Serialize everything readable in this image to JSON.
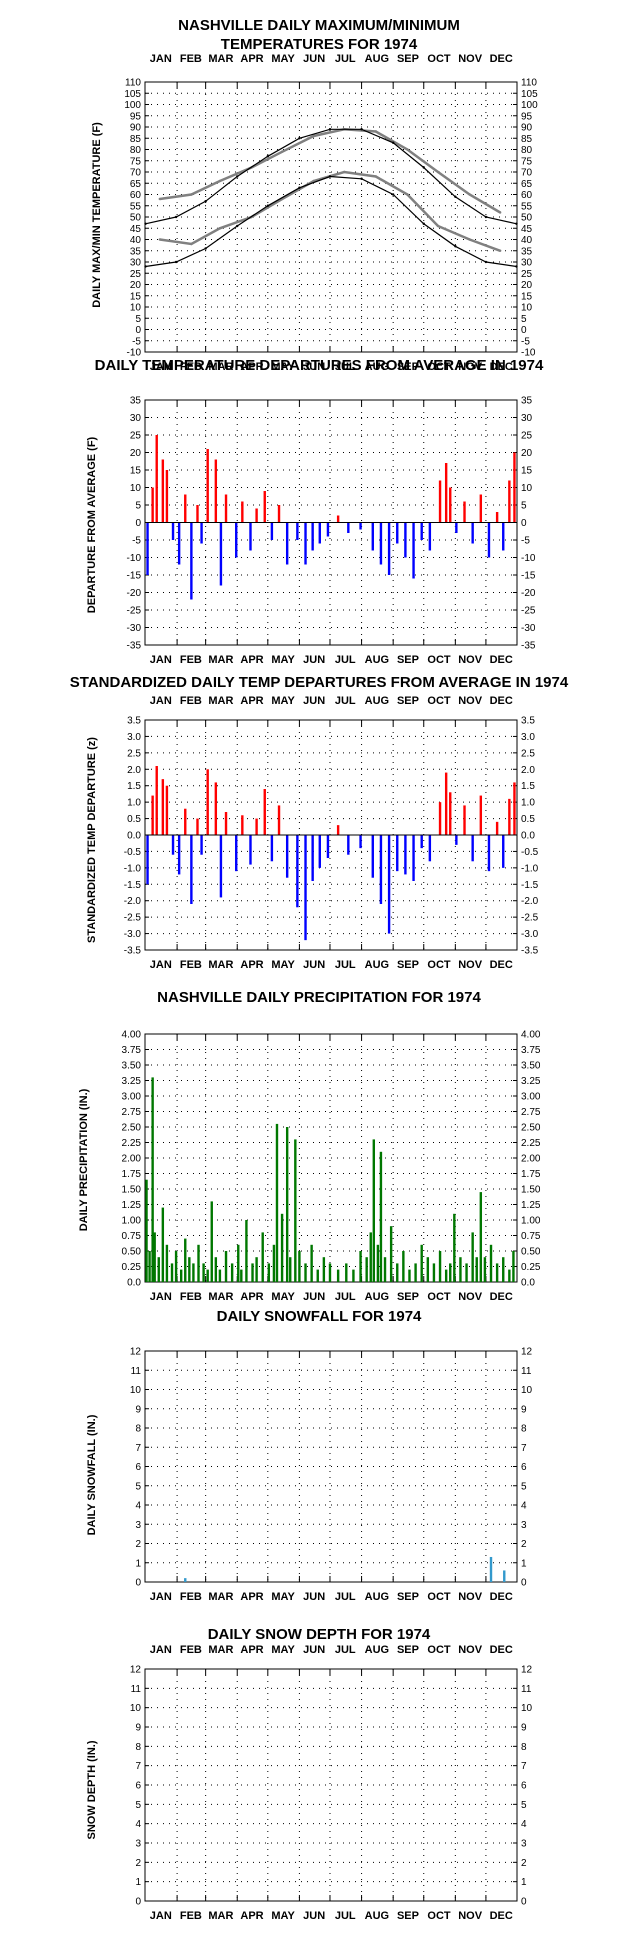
{
  "chart_data": [
    {
      "id": "temp",
      "type": "line",
      "title": [
        "NASHVILLE DAILY MAXIMUM/MINIMUM",
        "TEMPERATURES FOR 1974"
      ],
      "ylabel": "DAILY MAX/MIN TEMPERATURE (F)",
      "months": [
        "JAN",
        "FEB",
        "MAR",
        "APR",
        "MAY",
        "JUN",
        "JUL",
        "AUG",
        "SEP",
        "OCT",
        "NOV",
        "DEC"
      ],
      "ylim": [
        -10,
        110
      ],
      "yticks": [
        "110",
        "105",
        "100",
        "95",
        "90",
        "85",
        "80",
        "75",
        "70",
        "65",
        "60",
        "55",
        "50",
        "45",
        "40",
        "35",
        "30",
        "25",
        "20",
        "15",
        "10",
        "5",
        "0",
        "-5",
        "-10"
      ],
      "grid": true,
      "series": [
        {
          "role": "daily max (monthly approx.)",
          "color": "#808080",
          "x": [
            15,
            46,
            74,
            105,
            135,
            166,
            196,
            227,
            258,
            288,
            319,
            349
          ],
          "y": [
            58,
            60,
            66,
            72,
            79,
            86,
            89,
            88,
            80,
            70,
            60,
            52
          ]
        },
        {
          "role": "daily min (monthly approx.)",
          "color": "#808080",
          "x": [
            15,
            46,
            74,
            105,
            135,
            166,
            196,
            227,
            258,
            288,
            319,
            349
          ],
          "y": [
            40,
            38,
            45,
            50,
            58,
            66,
            70,
            68,
            60,
            46,
            40,
            35
          ]
        },
        {
          "role": "normal max",
          "color": "#000000",
          "x": [
            1,
            31,
            60,
            91,
            121,
            152,
            182,
            213,
            244,
            274,
            305,
            335,
            365
          ],
          "y": [
            47,
            50,
            57,
            68,
            77,
            85,
            89,
            89,
            83,
            72,
            59,
            50,
            47
          ]
        },
        {
          "role": "normal min",
          "color": "#000000",
          "x": [
            1,
            31,
            60,
            91,
            121,
            152,
            182,
            213,
            244,
            274,
            305,
            335,
            365
          ],
          "y": [
            28,
            30,
            36,
            46,
            55,
            63,
            68,
            67,
            60,
            47,
            37,
            30,
            28
          ]
        }
      ]
    },
    {
      "id": "dep",
      "type": "bar",
      "title": [
        "DAILY TEMPERATURE DEPARTURES FROM AVERAGE IN 1974"
      ],
      "ylabel": "DEPARTURE FROM AVERAGE (F)",
      "months": [
        "JAN",
        "FEB",
        "MAR",
        "APR",
        "MAY",
        "JUN",
        "JUL",
        "AUG",
        "SEP",
        "OCT",
        "NOV",
        "DEC"
      ],
      "ylim": [
        -35,
        35
      ],
      "yticks": [
        "35",
        "30",
        "25",
        "20",
        "15",
        "10",
        "5",
        "0",
        "-5",
        "-10",
        "-15",
        "-20",
        "-25",
        "-30",
        "-35"
      ],
      "grid": true,
      "pos_color": "#ff0000",
      "neg_color": "#0000ff",
      "series": [
        {
          "role": "departure peaks (approx.)",
          "x": [
            3,
            8,
            12,
            18,
            22,
            28,
            34,
            40,
            46,
            52,
            56,
            62,
            70,
            75,
            80,
            90,
            96,
            104,
            110,
            118,
            125,
            132,
            140,
            150,
            158,
            165,
            172,
            180,
            190,
            200,
            212,
            224,
            232,
            240,
            248,
            256,
            264,
            272,
            280,
            290,
            296,
            300,
            306,
            314,
            322,
            330,
            338,
            346,
            352,
            358,
            363
          ],
          "y": [
            -15,
            10,
            25,
            18,
            15,
            -5,
            -12,
            8,
            -22,
            5,
            -6,
            21,
            18,
            -18,
            8,
            -10,
            6,
            -8,
            4,
            9,
            -5,
            5,
            -12,
            -5,
            -12,
            -8,
            -6,
            -4,
            2,
            -3,
            -2,
            -8,
            -12,
            -15,
            -6,
            -10,
            -16,
            -5,
            -8,
            12,
            17,
            10,
            -3,
            6,
            -6,
            8,
            -10,
            3,
            -8,
            12,
            20
          ]
        }
      ]
    },
    {
      "id": "std",
      "type": "bar",
      "title": [
        "STANDARDIZED DAILY TEMP DEPARTURES FROM AVERAGE IN 1974"
      ],
      "ylabel": "STANDARDIZED TEMP DEPARTURE (z)",
      "months": [
        "JAN",
        "FEB",
        "MAR",
        "APR",
        "MAY",
        "JUN",
        "JUL",
        "AUG",
        "SEP",
        "OCT",
        "NOV",
        "DEC"
      ],
      "ylim": [
        -3.5,
        3.5
      ],
      "yticks": [
        "3.5",
        "3.0",
        "2.5",
        "2.0",
        "1.5",
        "1.0",
        "0.5",
        "0.0",
        "-0.5",
        "-1.0",
        "-1.5",
        "-2.0",
        "-2.5",
        "-3.0",
        "-3.5"
      ],
      "grid": true,
      "pos_color": "#ff0000",
      "neg_color": "#0000ff",
      "series": [
        {
          "role": "standardized departure peaks (approx.)",
          "x": [
            3,
            8,
            12,
            18,
            22,
            28,
            34,
            40,
            46,
            52,
            56,
            62,
            70,
            75,
            80,
            90,
            96,
            104,
            110,
            118,
            125,
            132,
            140,
            150,
            158,
            165,
            172,
            180,
            190,
            200,
            212,
            224,
            232,
            240,
            248,
            256,
            264,
            272,
            280,
            290,
            296,
            300,
            306,
            314,
            322,
            330,
            338,
            346,
            352,
            358,
            363
          ],
          "y": [
            -1.5,
            1.2,
            2.1,
            1.7,
            1.5,
            -0.6,
            -1.2,
            0.8,
            -2.1,
            0.5,
            -0.6,
            2.0,
            1.6,
            -1.9,
            0.7,
            -1.1,
            0.6,
            -0.9,
            0.5,
            1.4,
            -0.8,
            0.9,
            -1.3,
            -2.2,
            -3.2,
            -1.4,
            -1.0,
            -0.7,
            0.3,
            -0.6,
            -0.4,
            -1.3,
            -2.1,
            -3.0,
            -1.1,
            -1.2,
            -1.4,
            -0.4,
            -0.8,
            1.0,
            1.9,
            1.3,
            -0.3,
            0.9,
            -0.8,
            1.2,
            -1.1,
            0.4,
            -1.0,
            1.1,
            1.6
          ]
        }
      ]
    },
    {
      "id": "precip",
      "type": "bar",
      "title": [
        "NASHVILLE DAILY PRECIPITATION FOR 1974"
      ],
      "ylabel": "DAILY PRECIPITATION (IN.)",
      "months": [
        "JAN",
        "FEB",
        "MAR",
        "APR",
        "MAY",
        "JUN",
        "JUL",
        "AUG",
        "SEP",
        "OCT",
        "NOV",
        "DEC"
      ],
      "ylim": [
        0,
        4.0
      ],
      "yticks": [
        "4.00",
        "3.75",
        "3.50",
        "3.25",
        "3.00",
        "2.75",
        "2.50",
        "2.25",
        "2.00",
        "1.75",
        "1.50",
        "1.25",
        "1.00",
        "0.75",
        "0.50",
        "0.25",
        "0.0"
      ],
      "grid": true,
      "bar_color": "#007700",
      "series": [
        {
          "role": "daily precipitation (approx.)",
          "x": [
            2,
            5,
            8,
            10,
            14,
            18,
            22,
            27,
            31,
            36,
            40,
            44,
            48,
            53,
            58,
            62,
            66,
            70,
            74,
            80,
            86,
            92,
            95,
            100,
            106,
            110,
            116,
            122,
            127,
            130,
            135,
            140,
            143,
            148,
            152,
            158,
            164,
            170,
            176,
            182,
            190,
            198,
            205,
            212,
            218,
            222,
            225,
            229,
            232,
            236,
            242,
            248,
            254,
            260,
            266,
            272,
            278,
            284,
            290,
            296,
            300,
            304,
            310,
            316,
            322,
            326,
            330,
            334,
            340,
            346,
            352,
            358,
            362
          ],
          "y": [
            1.65,
            0.5,
            3.3,
            0.8,
            0.4,
            1.2,
            0.6,
            0.3,
            0.5,
            0.2,
            0.7,
            0.4,
            0.3,
            0.6,
            0.3,
            0.2,
            1.3,
            0.4,
            0.2,
            0.5,
            0.3,
            0.6,
            0.2,
            1.0,
            0.3,
            0.4,
            0.8,
            0.3,
            0.6,
            2.55,
            1.1,
            2.5,
            0.4,
            2.3,
            0.5,
            0.3,
            0.6,
            0.2,
            0.4,
            0.3,
            0.2,
            0.3,
            0.2,
            0.5,
            0.4,
            0.8,
            2.3,
            0.6,
            2.1,
            0.4,
            0.9,
            0.3,
            0.5,
            0.2,
            0.3,
            0.6,
            0.4,
            0.3,
            0.5,
            0.2,
            0.3,
            1.1,
            0.4,
            0.3,
            0.8,
            0.4,
            1.45,
            0.4,
            0.6,
            0.3,
            0.4,
            0.2,
            0.5
          ]
        }
      ]
    },
    {
      "id": "snow",
      "type": "bar",
      "title": [
        "DAILY SNOWFALL FOR 1974"
      ],
      "ylabel": "DAILY SNOWFALL (IN.)",
      "months": [
        "JAN",
        "FEB",
        "MAR",
        "APR",
        "MAY",
        "JUN",
        "JUL",
        "AUG",
        "SEP",
        "OCT",
        "NOV",
        "DEC"
      ],
      "ylim": [
        0,
        12
      ],
      "yticks": [
        "12",
        "11",
        "10",
        "9",
        "8",
        "7",
        "6",
        "5",
        "4",
        "3",
        "2",
        "1",
        "0"
      ],
      "grid": true,
      "bar_color": "#3399cc",
      "series": [
        {
          "role": "daily snowfall (approx.)",
          "x": [
            40,
            340,
            353
          ],
          "y": [
            0.2,
            1.3,
            0.6
          ]
        }
      ]
    },
    {
      "id": "depth",
      "type": "bar",
      "title": [
        "DAILY SNOW DEPTH FOR 1974"
      ],
      "ylabel": "SNOW DEPTH (IN.)",
      "months": [
        "JAN",
        "FEB",
        "MAR",
        "APR",
        "MAY",
        "JUN",
        "JUL",
        "AUG",
        "SEP",
        "OCT",
        "NOV",
        "DEC"
      ],
      "ylim": [
        0,
        12
      ],
      "yticks": [
        "12",
        "11",
        "10",
        "9",
        "8",
        "7",
        "6",
        "5",
        "4",
        "3",
        "2",
        "1",
        "0"
      ],
      "grid": true,
      "bar_color": "#3399cc",
      "series": []
    }
  ]
}
